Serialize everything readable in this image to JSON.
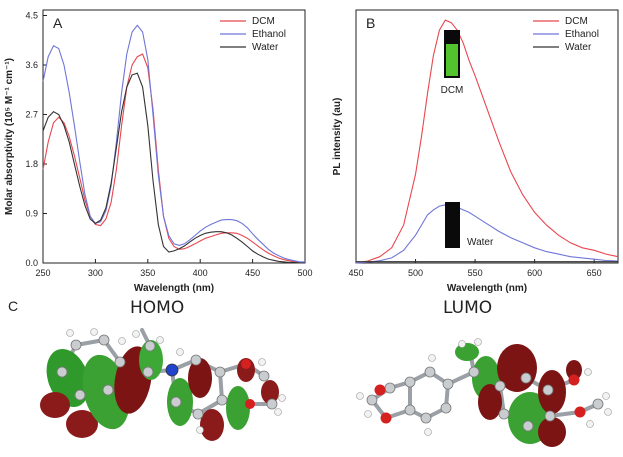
{
  "panel_letters": {
    "a": "A",
    "b": "B",
    "c": "C"
  },
  "orbitals": {
    "homo": "HOMO",
    "lumo": "LUMO"
  },
  "colors": {
    "dcm": "#e8474f",
    "ethanol": "#6f76d9",
    "water": "#333333",
    "vial_glow": "#53c32e"
  },
  "chart_data": [
    {
      "type": "line",
      "panel": "A",
      "xlabel": "Wavelength (nm)",
      "ylabel": "Molar absorptivity (10⁵ M⁻¹ cm⁻¹)",
      "xlim": [
        250,
        500
      ],
      "ylim": [
        0,
        4.6
      ],
      "xticks": [
        250,
        300,
        350,
        400,
        450,
        500
      ],
      "yticks": [
        "0.0",
        "0.9",
        "1.8",
        "2.7",
        "3.6",
        "4.5"
      ],
      "legend_position": "top-right",
      "series": [
        {
          "name": "DCM",
          "color": "#e8474f",
          "x": [
            250,
            255,
            260,
            265,
            270,
            275,
            280,
            285,
            290,
            295,
            300,
            305,
            310,
            315,
            320,
            325,
            330,
            335,
            340,
            345,
            350,
            355,
            360,
            365,
            370,
            375,
            380,
            385,
            390,
            395,
            400,
            405,
            410,
            415,
            420,
            425,
            430,
            435,
            440,
            445,
            450,
            455,
            460,
            465,
            470,
            475,
            480,
            485,
            490,
            495,
            500
          ],
          "y": [
            1.7,
            2.2,
            2.55,
            2.65,
            2.55,
            2.3,
            1.95,
            1.55,
            1.15,
            0.85,
            0.7,
            0.68,
            0.8,
            1.1,
            1.7,
            2.5,
            3.2,
            3.6,
            3.75,
            3.8,
            3.55,
            2.8,
            1.7,
            0.85,
            0.45,
            0.3,
            0.25,
            0.26,
            0.3,
            0.35,
            0.4,
            0.45,
            0.48,
            0.51,
            0.54,
            0.55,
            0.55,
            0.54,
            0.5,
            0.45,
            0.38,
            0.31,
            0.24,
            0.18,
            0.13,
            0.09,
            0.06,
            0.04,
            0.02,
            0.01,
            0.01
          ]
        },
        {
          "name": "Ethanol",
          "color": "#6f76d9",
          "x": [
            250,
            255,
            260,
            265,
            270,
            275,
            280,
            285,
            290,
            295,
            300,
            305,
            310,
            315,
            320,
            325,
            330,
            335,
            340,
            345,
            350,
            355,
            360,
            365,
            370,
            375,
            380,
            385,
            390,
            395,
            400,
            405,
            410,
            415,
            420,
            425,
            430,
            435,
            440,
            445,
            450,
            455,
            460,
            465,
            470,
            475,
            480,
            485,
            490,
            495,
            500
          ],
          "y": [
            3.3,
            3.75,
            3.95,
            3.9,
            3.6,
            3.1,
            2.5,
            1.85,
            1.25,
            0.85,
            0.72,
            0.75,
            0.95,
            1.4,
            2.2,
            3.1,
            3.8,
            4.2,
            4.32,
            4.2,
            3.7,
            2.7,
            1.6,
            0.85,
            0.5,
            0.35,
            0.32,
            0.35,
            0.42,
            0.5,
            0.58,
            0.65,
            0.7,
            0.74,
            0.78,
            0.79,
            0.79,
            0.77,
            0.72,
            0.64,
            0.53,
            0.43,
            0.34,
            0.25,
            0.18,
            0.13,
            0.09,
            0.06,
            0.04,
            0.02,
            0.02
          ]
        },
        {
          "name": "Water",
          "color": "#333333",
          "x": [
            250,
            255,
            260,
            265,
            270,
            275,
            280,
            285,
            290,
            295,
            300,
            305,
            310,
            315,
            320,
            325,
            330,
            335,
            340,
            345,
            350,
            355,
            360,
            365,
            370,
            375,
            380,
            385,
            390,
            395,
            400,
            405,
            410,
            415,
            420,
            425,
            430,
            435,
            440,
            445,
            450,
            455,
            460,
            465,
            470,
            475,
            480,
            485,
            490,
            495,
            500
          ],
          "y": [
            2.4,
            2.65,
            2.75,
            2.7,
            2.5,
            2.2,
            1.8,
            1.4,
            1.05,
            0.8,
            0.72,
            0.78,
            1.0,
            1.45,
            2.1,
            2.75,
            3.2,
            3.42,
            3.45,
            3.2,
            2.5,
            1.5,
            0.7,
            0.3,
            0.2,
            0.22,
            0.26,
            0.31,
            0.38,
            0.45,
            0.5,
            0.54,
            0.56,
            0.57,
            0.57,
            0.55,
            0.51,
            0.45,
            0.38,
            0.3,
            0.22,
            0.16,
            0.11,
            0.07,
            0.05,
            0.03,
            0.02,
            0.01,
            0.01,
            0.0,
            0.0
          ]
        }
      ]
    },
    {
      "type": "line",
      "panel": "B",
      "xlabel": "Wavelength (nm)",
      "ylabel": "PL intensity (au)",
      "xlim": [
        450,
        670
      ],
      "ylim": [
        0,
        1.0
      ],
      "xticks": [
        450,
        500,
        550,
        600,
        650
      ],
      "legend_position": "top-right",
      "insets": [
        {
          "label": "DCM",
          "vial_color": "green glow"
        },
        {
          "label": "Water",
          "vial_color": "black"
        }
      ],
      "series": [
        {
          "name": "DCM",
          "color": "#e8474f",
          "x": [
            450,
            460,
            470,
            480,
            490,
            500,
            505,
            510,
            515,
            520,
            525,
            530,
            535,
            540,
            545,
            550,
            560,
            570,
            580,
            590,
            600,
            610,
            620,
            630,
            640,
            650,
            660,
            670
          ],
          "y": [
            0.0,
            0.008,
            0.025,
            0.06,
            0.15,
            0.35,
            0.5,
            0.67,
            0.82,
            0.92,
            0.96,
            0.95,
            0.92,
            0.87,
            0.8,
            0.74,
            0.61,
            0.48,
            0.36,
            0.27,
            0.2,
            0.15,
            0.11,
            0.08,
            0.06,
            0.05,
            0.035,
            0.025
          ]
        },
        {
          "name": "Ethanol",
          "color": "#6f76d9",
          "x": [
            450,
            460,
            470,
            480,
            490,
            500,
            505,
            510,
            515,
            520,
            525,
            530,
            535,
            540,
            545,
            550,
            560,
            570,
            580,
            590,
            600,
            610,
            620,
            630,
            640,
            650,
            660,
            670
          ],
          "y": [
            0.0,
            0.003,
            0.009,
            0.02,
            0.05,
            0.11,
            0.15,
            0.19,
            0.21,
            0.225,
            0.23,
            0.225,
            0.22,
            0.21,
            0.2,
            0.185,
            0.155,
            0.125,
            0.1,
            0.08,
            0.06,
            0.045,
            0.035,
            0.025,
            0.02,
            0.015,
            0.01,
            0.008
          ]
        },
        {
          "name": "Water",
          "color": "#333333",
          "x": [
            450,
            670
          ],
          "y": [
            0.005,
            0.005
          ]
        }
      ]
    }
  ]
}
